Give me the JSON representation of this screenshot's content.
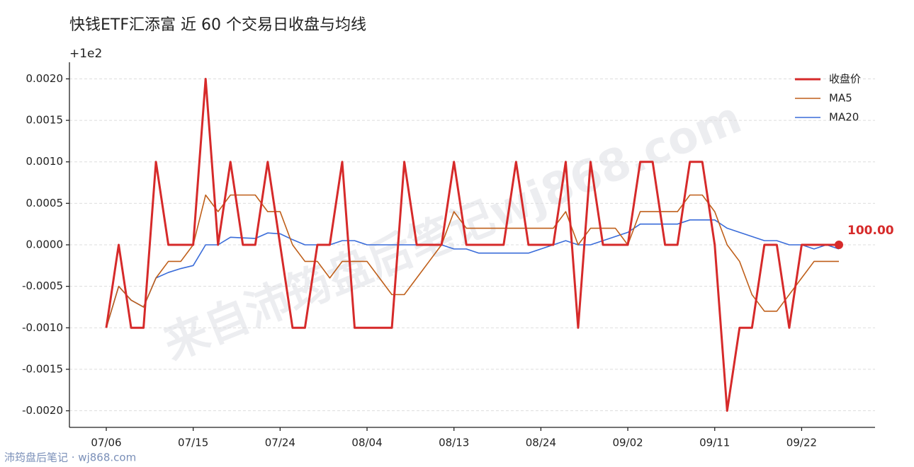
{
  "chart_data": {
    "type": "line",
    "title": "快钱ETF汇添富 近 60 个交易日收盘与均线",
    "offset_label": "+1e2",
    "annotation": "100.00",
    "watermark": "来自沛筠盘后笔记wj868.com",
    "footer": "沛筠盘后笔记 · wj868.com",
    "categories": [
      "07/06",
      null,
      null,
      null,
      null,
      null,
      null,
      "07/15",
      null,
      null,
      null,
      null,
      null,
      null,
      "07/24",
      null,
      null,
      null,
      null,
      null,
      null,
      "08/04",
      null,
      null,
      null,
      null,
      null,
      null,
      "08/13",
      null,
      null,
      null,
      null,
      null,
      null,
      "08/24",
      null,
      null,
      null,
      null,
      null,
      null,
      "09/02",
      null,
      null,
      null,
      null,
      null,
      null,
      "09/11",
      null,
      null,
      null,
      null,
      null,
      null,
      "09/22",
      null,
      null,
      null
    ],
    "series": [
      {
        "name": "收盘价",
        "color": "#d62a2a",
        "width": 3,
        "values": [
          -0.001,
          0,
          -0.001,
          -0.001,
          0.001,
          0,
          0,
          0,
          0.002,
          0,
          0.001,
          0,
          0,
          0.001,
          0,
          -0.001,
          -0.001,
          0,
          0,
          0.001,
          -0.001,
          -0.001,
          -0.001,
          -0.001,
          0.001,
          0,
          0,
          0,
          0.001,
          0,
          0,
          0,
          0,
          0.001,
          0,
          0,
          0,
          0.001,
          -0.001,
          0.001,
          0,
          0,
          0,
          0.001,
          0.001,
          0,
          0,
          0.001,
          0.001,
          0,
          -0.002,
          -0.001,
          -0.001,
          0,
          0,
          -0.001,
          0,
          0,
          0,
          0
        ]
      },
      {
        "name": "MA5",
        "color": "#bf5f1a",
        "width": 1.6,
        "values": [
          -0.001,
          -0.0005,
          -0.000667,
          -0.00075,
          -0.0004,
          -0.0002,
          -0.0002,
          0,
          0.0006,
          0.0004,
          0.0006,
          0.0006,
          0.0006,
          0.0004,
          0.0004,
          0,
          -0.0002,
          -0.0002,
          -0.0004,
          -0.0002,
          -0.0002,
          -0.0002,
          -0.0004,
          -0.0006,
          -0.0006,
          -0.0004,
          -0.0002,
          0,
          0.0004,
          0.0002,
          0.0002,
          0.0002,
          0.0002,
          0.0002,
          0.0002,
          0.0002,
          0.0002,
          0.0004,
          0,
          0.0002,
          0.0002,
          0.0002,
          0,
          0.0004,
          0.0004,
          0.0004,
          0.0004,
          0.0006,
          0.0006,
          0.0004,
          0,
          -0.0002,
          -0.0006,
          -0.0008,
          -0.0008,
          -0.0006,
          -0.0004,
          -0.0002,
          -0.0002,
          -0.0002
        ]
      },
      {
        "name": "MA20",
        "color": "#3a6cd9",
        "width": 1.6,
        "values": [
          -0.001,
          -0.0005,
          -0.000667,
          -0.00075,
          -0.0004,
          -0.000333,
          -0.000286,
          -0.00025,
          0,
          0,
          9.09e-05,
          8.33e-05,
          7.69e-05,
          0.000143,
          0.000133,
          6.25e-05,
          0,
          0,
          0,
          5e-05,
          5e-05,
          0,
          0,
          0,
          0,
          0,
          0,
          0,
          -5e-05,
          -5e-05,
          -0.0001,
          -0.0001,
          -0.0001,
          -0.0001,
          -0.0001,
          -5e-05,
          0,
          5e-05,
          0,
          0,
          5e-05,
          0.0001,
          0.00015,
          0.00025,
          0.00025,
          0.00025,
          0.00025,
          0.0003,
          0.0003,
          0.0003,
          0.0002,
          0.00015,
          0.0001,
          5e-05,
          5e-05,
          0,
          0,
          -5e-05,
          0,
          -5e-05
        ]
      }
    ],
    "ylim": [
      -0.0022,
      0.0022
    ],
    "yticks": [
      {
        "value": -0.002,
        "label": "-0.0020"
      },
      {
        "value": -0.0015,
        "label": "-0.0015"
      },
      {
        "value": -0.001,
        "label": "-0.0010"
      },
      {
        "value": -0.0005,
        "label": "-0.0005"
      },
      {
        "value": 0,
        "label": "0.0000"
      },
      {
        "value": 0.0005,
        "label": "0.0005"
      },
      {
        "value": 0.001,
        "label": "0.0010"
      },
      {
        "value": 0.0015,
        "label": "0.0015"
      },
      {
        "value": 0.002,
        "label": "0.0020"
      }
    ],
    "grid": true,
    "legend": "upper right"
  }
}
